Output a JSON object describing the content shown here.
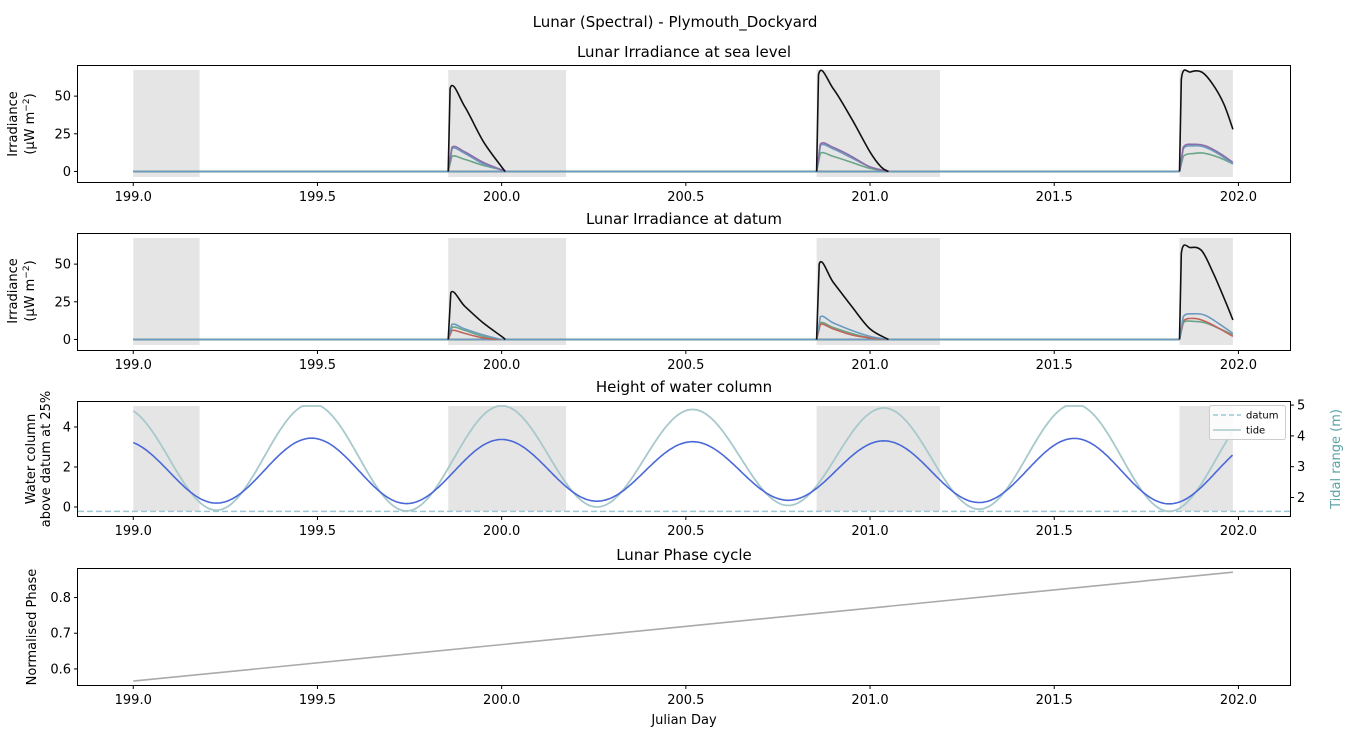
{
  "figure": {
    "title": "Lunar (Spectral) - Plymouth_Dockyard"
  },
  "colors": {
    "shade": "#e5e5e5",
    "black": "#111111",
    "purple": "#8c6fa8",
    "blue_grey": "#6b9bc0",
    "red": "#c0645a",
    "green": "#6aa58a",
    "water": "#4a68d8",
    "tide": "#a8c9cc",
    "datum": "#9cc9d8",
    "phase": "#aaaaaa",
    "tidal_axis": "#5ea3a5"
  },
  "chart_data": [
    {
      "type": "line",
      "title": "Lunar Irradiance at sea level",
      "ylabel_line1": "Irradiance",
      "ylabel_line2": "(μW m",
      "ylabel_sup": "−2",
      "ylabel_end": ")",
      "xlim": [
        198.85,
        202.14
      ],
      "ylim": [
        -7,
        70
      ],
      "xticks": [
        "199.0",
        "199.5",
        "200.0",
        "200.5",
        "201.0",
        "201.5",
        "202.0"
      ],
      "yticks": [
        "0",
        "25",
        "50"
      ],
      "shaded_intervals": [
        [
          199.0,
          199.18
        ],
        [
          199.855,
          200.175
        ],
        [
          200.855,
          201.19
        ],
        [
          201.84,
          201.985
        ]
      ],
      "moon_windows": [
        [
          199.855,
          200.0
        ],
        [
          200.855,
          201.05
        ],
        [
          201.84,
          201.985
        ]
      ],
      "series": [
        {
          "color_key": "black",
          "windows": [
            {
              "x": [
                199.855,
                199.86,
                199.9,
                199.95,
                200.0,
                200.01
              ],
              "y": [
                0,
                55,
                43,
                20,
                3,
                0
              ]
            },
            {
              "x": [
                200.855,
                200.86,
                200.9,
                200.95,
                201.0,
                201.03,
                201.05
              ],
              "y": [
                0,
                64,
                55,
                35,
                13,
                3,
                0
              ]
            },
            {
              "x": [
                201.84,
                201.845,
                201.87,
                201.9,
                201.93,
                201.96,
                201.985
              ],
              "y": [
                0,
                61,
                66,
                66,
                58,
                45,
                28
              ]
            }
          ]
        },
        {
          "color_key": "purple",
          "windows": [
            {
              "x": [
                199.855,
                199.865,
                199.9,
                199.95,
                200.0,
                200.01
              ],
              "y": [
                0,
                16,
                13,
                6,
                1,
                0
              ]
            },
            {
              "x": [
                200.855,
                200.865,
                200.9,
                200.95,
                201.0,
                201.05
              ],
              "y": [
                0,
                18,
                16,
                10,
                3,
                0
              ]
            },
            {
              "x": [
                201.84,
                201.85,
                201.88,
                201.91,
                201.95,
                201.985
              ],
              "y": [
                0,
                16,
                18,
                17,
                12,
                6
              ]
            }
          ]
        },
        {
          "color_key": "blue_grey",
          "windows": [
            {
              "x": [
                199.855,
                199.865,
                199.9,
                199.95,
                200.0,
                200.01
              ],
              "y": [
                0,
                15,
                12,
                5,
                1,
                0
              ]
            },
            {
              "x": [
                200.855,
                200.865,
                200.9,
                200.95,
                201.0,
                201.05
              ],
              "y": [
                0,
                17,
                15,
                9,
                3,
                0
              ]
            },
            {
              "x": [
                201.84,
                201.85,
                201.88,
                201.91,
                201.95,
                201.985
              ],
              "y": [
                0,
                15,
                17,
                16,
                11,
                5
              ]
            }
          ]
        },
        {
          "color_key": "green",
          "windows": [
            {
              "x": [
                199.855,
                199.865,
                199.9,
                199.95,
                200.0,
                200.01
              ],
              "y": [
                0,
                10,
                8,
                4,
                1,
                0
              ]
            },
            {
              "x": [
                200.855,
                200.865,
                200.9,
                200.95,
                201.0,
                201.05
              ],
              "y": [
                0,
                12,
                10,
                6,
                2,
                0
              ]
            },
            {
              "x": [
                201.84,
                201.85,
                201.88,
                201.91,
                201.95,
                201.985
              ],
              "y": [
                0,
                10,
                12,
                12,
                9,
                5
              ]
            }
          ]
        }
      ]
    },
    {
      "type": "line",
      "title": "Lunar Irradiance at datum",
      "ylabel_line1": "Irradiance",
      "ylabel_line2": "(μW m",
      "ylabel_sup": "−2",
      "ylabel_end": ")",
      "xlim": [
        198.85,
        202.14
      ],
      "ylim": [
        -7,
        70
      ],
      "xticks": [
        "199.0",
        "199.5",
        "200.0",
        "200.5",
        "201.0",
        "201.5",
        "202.0"
      ],
      "yticks": [
        "0",
        "25",
        "50"
      ],
      "shaded_intervals": [
        [
          199.0,
          199.18
        ],
        [
          199.855,
          200.175
        ],
        [
          200.855,
          201.19
        ],
        [
          201.84,
          201.985
        ]
      ],
      "series": [
        {
          "color_key": "black",
          "windows": [
            {
              "x": [
                199.855,
                199.862,
                199.9,
                199.95,
                200.0,
                200.01
              ],
              "y": [
                0,
                31,
                22,
                11,
                2,
                0
              ]
            },
            {
              "x": [
                200.855,
                200.862,
                200.9,
                200.95,
                201.0,
                201.05
              ],
              "y": [
                0,
                50,
                38,
                22,
                7,
                0
              ]
            },
            {
              "x": [
                201.84,
                201.845,
                201.87,
                201.9,
                201.93,
                201.96,
                201.985
              ],
              "y": [
                0,
                57,
                61,
                59,
                45,
                28,
                13
              ]
            }
          ]
        },
        {
          "color_key": "blue_grey",
          "windows": [
            {
              "x": [
                199.855,
                199.865,
                199.9,
                199.95,
                200.0,
                200.01
              ],
              "y": [
                0,
                10,
                7,
                3,
                0,
                0
              ]
            },
            {
              "x": [
                200.855,
                200.865,
                200.9,
                200.95,
                201.0,
                201.05
              ],
              "y": [
                0,
                15,
                11,
                6,
                2,
                0
              ]
            },
            {
              "x": [
                201.84,
                201.85,
                201.88,
                201.91,
                201.95,
                201.985
              ],
              "y": [
                0,
                15,
                17,
                16,
                10,
                4
              ]
            }
          ]
        },
        {
          "color_key": "red",
          "windows": [
            {
              "x": [
                199.855,
                199.865,
                199.9,
                199.95,
                200.0,
                200.01
              ],
              "y": [
                0,
                6,
                4,
                1,
                0,
                0
              ]
            },
            {
              "x": [
                200.855,
                200.865,
                200.9,
                200.95,
                201.0,
                201.05
              ],
              "y": [
                0,
                10,
                7,
                3,
                1,
                0
              ]
            },
            {
              "x": [
                201.84,
                201.85,
                201.88,
                201.91,
                201.95,
                201.985
              ],
              "y": [
                0,
                12,
                14,
                12,
                7,
                2
              ]
            }
          ]
        },
        {
          "color_key": "green",
          "windows": [
            {
              "x": [
                199.855,
                199.865,
                199.9,
                199.95,
                200.0,
                200.01
              ],
              "y": [
                0,
                8,
                6,
                2,
                0,
                0
              ]
            },
            {
              "x": [
                200.855,
                200.865,
                200.9,
                200.95,
                201.0,
                201.05
              ],
              "y": [
                0,
                11,
                8,
                4,
                1,
                0
              ]
            },
            {
              "x": [
                201.84,
                201.85,
                201.88,
                201.91,
                201.95,
                201.985
              ],
              "y": [
                0,
                11,
                12,
                11,
                7,
                3
              ]
            }
          ]
        }
      ]
    },
    {
      "type": "line",
      "title": "Height of water column",
      "ylabel_line1": "Water column",
      "ylabel_line2": "above datum at 25%",
      "y2label": "Tidal range (m)",
      "xlim": [
        198.85,
        202.14
      ],
      "ylim": [
        -0.45,
        5.25
      ],
      "y2lim": [
        1.4,
        5.1
      ],
      "xticks": [
        "199.0",
        "199.5",
        "200.0",
        "200.5",
        "201.0",
        "201.5",
        "202.0"
      ],
      "yticks": [
        "0",
        "2",
        "4"
      ],
      "y2ticks": [
        "2",
        "3",
        "4",
        "5"
      ],
      "shaded_intervals": [
        [
          199.0,
          199.18
        ],
        [
          199.855,
          200.175
        ],
        [
          200.855,
          201.19
        ],
        [
          201.84,
          201.985
        ]
      ],
      "tide_model": {
        "period": 0.5175,
        "phase_x": 199.225,
        "water_mid": 1.8,
        "water_amp": 1.55,
        "tide_mid": 3.3,
        "tide_amp": 1.65
      },
      "datum_level": 1.55,
      "legend": {
        "position": "upper right",
        "entries": [
          "datum",
          "tide"
        ]
      }
    },
    {
      "type": "line",
      "title": "Lunar Phase cycle",
      "ylabel": "Normalised Phase",
      "xlabel": "Julian Day",
      "xlim": [
        198.85,
        202.14
      ],
      "ylim": [
        0.555,
        0.88
      ],
      "xticks": [
        "199.0",
        "199.5",
        "200.0",
        "200.5",
        "201.0",
        "201.5",
        "202.0"
      ],
      "yticks": [
        "0.6",
        "0.7",
        "0.8"
      ],
      "series": [
        {
          "color_key": "phase",
          "x": [
            199.0,
            201.985
          ],
          "y": [
            0.566,
            0.871
          ]
        }
      ]
    }
  ]
}
